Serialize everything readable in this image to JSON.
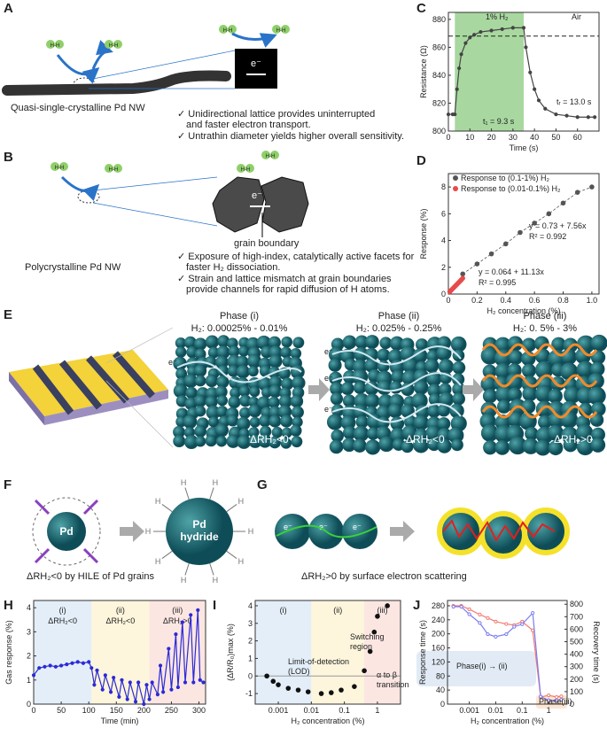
{
  "labels": [
    "A",
    "B",
    "C",
    "D",
    "E",
    "F",
    "G",
    "H",
    "I",
    "J"
  ],
  "panel_a": {
    "molecule": "H-H",
    "electron": "e⁻",
    "caption": "Quasi-single-crystalline  Pd NW",
    "bullets": [
      [
        "✓ Unidirectional lattice provides uninterrupted",
        "and faster electron transport."
      ],
      [
        "✓ Untrathin diameter yields higher overall sensitivity."
      ]
    ]
  },
  "panel_b": {
    "molecule": "H-H",
    "electron": "e⁻",
    "grain_label": "grain boundary",
    "caption": "Polycrystalline  Pd NW",
    "bullets": [
      [
        "✓ Exposure of high-index, catalytically active facets for",
        "faster H₂ dissociation."
      ],
      [
        "✓ Strain and lattice mismatch at grain boundaries",
        "provide channels for rapid diffusion of H atoms."
      ]
    ]
  },
  "panel_e": {
    "electron": "e⁻",
    "phases": [
      {
        "title": "Phase (i)",
        "range": "H₂: 0.00025% - 0.01%",
        "delta": "ΔRH₂<0"
      },
      {
        "title": "Phase (ii)",
        "range": "H₂: 0.025% - 0.25%",
        "delta": "ΔRH₂<0"
      },
      {
        "title": "Phase (iii)",
        "range": "H₂: 0. 5% - 3%",
        "delta": "ΔRH₂>0"
      }
    ]
  },
  "panel_f": {
    "grain": "Pd",
    "hydride": [
      "Pd",
      "hydride"
    ],
    "h": "H",
    "caption": "ΔRH₂<0 by HILE of Pd grains"
  },
  "panel_g": {
    "electron": "e⁻",
    "caption": "ΔRH₂>0 by surface electron scattering"
  },
  "chart_data": [
    {
      "type": "line",
      "xlabel": "Time (s)",
      "ylabel": "Resistance (Ω)",
      "xlim": [
        0,
        70
      ],
      "ylim": [
        800,
        885
      ],
      "xticks": [
        0,
        10,
        20,
        30,
        40,
        50,
        60
      ],
      "yticks": [
        800,
        820,
        840,
        860,
        880
      ],
      "h2_window": [
        3,
        35
      ],
      "window_color": "#a8d8a0",
      "reference": 868,
      "annotations": [
        "1% H₂",
        "Air",
        "t₁ = 9.3 s",
        "tᵣ = 13.0 s"
      ],
      "x": [
        0,
        2,
        3,
        4,
        5,
        6,
        8,
        10,
        12,
        15,
        20,
        25,
        30,
        35,
        36,
        38,
        40,
        42,
        45,
        50,
        55,
        60,
        65,
        68
      ],
      "series": [
        {
          "color": "#444444",
          "values": [
            812,
            812,
            812,
            830,
            845,
            855,
            863,
            867,
            869,
            871,
            872,
            873,
            874,
            874,
            860,
            842,
            830,
            822,
            816,
            812,
            811,
            810,
            810,
            810
          ]
        }
      ]
    },
    {
      "type": "scatter",
      "xlabel": "H₂ concentration (%)",
      "ylabel": "Response (%)",
      "xlim": [
        0,
        1.05
      ],
      "ylim": [
        0,
        9
      ],
      "xticks": [
        0,
        0.2,
        0.4,
        0.6,
        0.8,
        {
          "value": 1,
          "label": "1.0"
        }
      ],
      "yticks": [
        0,
        2,
        4,
        6,
        8
      ],
      "legend": "upper left",
      "fit_line": true,
      "annotations": [
        "y = 0.73 + 7.56x",
        "R² = 0.992",
        "y = 0.064 + 11.13x",
        "R² = 0.995"
      ],
      "series": [
        {
          "name": "Response to (0.1-1%) H₂",
          "color": "#555555",
          "x": [
            0.1,
            0.2,
            0.3,
            0.4,
            0.5,
            0.6,
            0.7,
            0.8,
            0.9,
            1.0
          ],
          "values": [
            1.5,
            2.25,
            3.0,
            3.75,
            4.6,
            5.3,
            6.0,
            6.8,
            7.6,
            8.0
          ]
        },
        {
          "name": "Response to (0.01-0.1%) H₂",
          "color": "#e84a4a",
          "x": [
            0.01,
            0.02,
            0.03,
            0.04,
            0.05,
            0.06,
            0.07,
            0.08,
            0.09,
            0.1
          ],
          "values": [
            0.18,
            0.29,
            0.4,
            0.51,
            0.62,
            0.73,
            0.84,
            0.95,
            1.06,
            1.18
          ]
        }
      ]
    },
    {
      "type": "line",
      "xlabel": "Time (min)",
      "ylabel": "Gas response (%)",
      "xlim": [
        0,
        312
      ],
      "ylim": [
        0,
        4.3
      ],
      "xticks": [
        0,
        50,
        100,
        150,
        200,
        250,
        300
      ],
      "yticks": [
        0,
        1,
        2,
        3,
        4
      ],
      "color": "#2b2bd6",
      "regions": [
        {
          "from": 0,
          "to": 105,
          "color": "#e3eef8",
          "label": "(i)",
          "note": "ΔRH₂<0"
        },
        {
          "from": 105,
          "to": 210,
          "color": "#fdf5dc",
          "label": "(ii)",
          "note": "ΔRH₂<0"
        },
        {
          "from": 210,
          "to": 312,
          "color": "#fbe6e2",
          "label": "(iii)",
          "note": "ΔRH₂>0"
        }
      ],
      "x": [
        0,
        10,
        20,
        30,
        40,
        50,
        60,
        70,
        80,
        90,
        100,
        105,
        110,
        115,
        125,
        130,
        140,
        145,
        155,
        160,
        170,
        175,
        185,
        190,
        200,
        205,
        210,
        215,
        225,
        230,
        235,
        245,
        250,
        258,
        262,
        270,
        275,
        285,
        290,
        298,
        302,
        308
      ],
      "values": [
        1.2,
        1.5,
        1.55,
        1.6,
        1.55,
        1.6,
        1.65,
        1.7,
        1.75,
        1.7,
        1.75,
        1.5,
        0.8,
        1.4,
        0.6,
        1.2,
        0.5,
        1.1,
        0.3,
        1.0,
        0.2,
        0.9,
        0.1,
        0.9,
        0.0,
        0.8,
        0.2,
        0.9,
        0.4,
        1.6,
        0.5,
        2.3,
        0.6,
        2.9,
        0.7,
        3.4,
        0.9,
        3.7,
        0.9,
        3.9,
        1.0,
        0.9
      ]
    },
    {
      "type": "scatter",
      "xlabel": "H₂ concentration (%)",
      "ylabel": "(ΔR/R₀)max (%)",
      "xlog": true,
      "xlim": [
        0.0002,
        5
      ],
      "ylim": [
        -1.6,
        4.3
      ],
      "xticks": [
        0.001,
        0.01,
        0.1,
        1
      ],
      "yticks": [
        -1,
        0,
        1,
        2,
        3,
        4
      ],
      "color": "#111111",
      "regions": [
        {
          "from": 0.0002,
          "to": 0.01,
          "color": "#e3eef8",
          "label": "(i)"
        },
        {
          "from": 0.01,
          "to": 0.4,
          "color": "#fdf5dc",
          "label": "(ii)"
        },
        {
          "from": 0.4,
          "to": 5,
          "color": "#fbe6e2",
          "label": "(iii)"
        }
      ],
      "annotations": [
        "Limit-of-detection",
        "(LOD)",
        "Switching",
        "region",
        "α to β",
        "transition"
      ],
      "x": [
        0.00045,
        0.0007,
        0.001,
        0.002,
        0.004,
        0.008,
        0.02,
        0.04,
        0.08,
        0.2,
        0.4,
        0.6,
        0.8,
        1,
        2
      ],
      "values": [
        0.0,
        -0.3,
        -0.5,
        -0.7,
        -0.8,
        -0.9,
        -1.0,
        -0.95,
        -0.8,
        -0.6,
        0.3,
        1.4,
        2.5,
        3.4,
        4.0
      ]
    },
    {
      "type": "line",
      "xlabel": "H₂ concentration (%)",
      "ylabel": "Response time (s)",
      "y2label": "Recovery time (s)",
      "xlog": true,
      "xlim": [
        0.00015,
        5
      ],
      "ylim": [
        0,
        295
      ],
      "y2lim": [
        0,
        830
      ],
      "xticks": [
        0.001,
        0.01,
        0.1,
        1
      ],
      "yticks": [
        0,
        40,
        80,
        120,
        160,
        200,
        240,
        280
      ],
      "y2ticks": [
        0,
        100,
        200,
        300,
        400,
        500,
        600,
        700,
        800
      ],
      "annotations": [
        "Phase(i) → (ii)",
        "Phase(iii)"
      ],
      "x": [
        0.00025,
        0.0005,
        0.001,
        0.0025,
        0.005,
        0.01,
        0.025,
        0.05,
        0.1,
        0.25,
        0.5,
        1,
        2,
        3
      ],
      "series": [
        {
          "color": "#f07a70",
          "values": [
            280,
            280,
            270,
            255,
            245,
            235,
            228,
            225,
            235,
            210,
            20,
            25,
            20,
            22
          ]
        },
        {
          "color": "#7b7bf0",
          "axis": "y2",
          "values": [
            780,
            780,
            720,
            650,
            560,
            540,
            560,
            620,
            640,
            730,
            60,
            30,
            30,
            35
          ]
        }
      ]
    }
  ]
}
